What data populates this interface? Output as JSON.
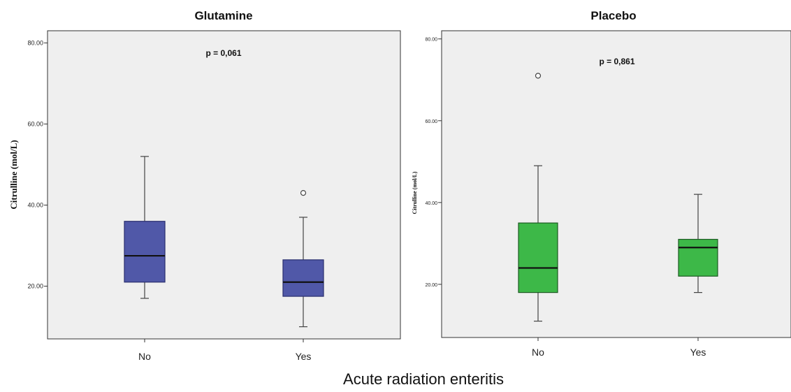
{
  "x_axis_label": "Acute radiation enteritis",
  "chart_data": [
    {
      "type": "box",
      "title": "Glutamine",
      "ylabel": "Citrulline (mol/L)",
      "ylim": [
        7,
        83
      ],
      "yticks": [
        "80.00",
        "60.00",
        "40.00",
        "20.00"
      ],
      "annotation": "p = 0,061",
      "categories": [
        "No",
        "Yes"
      ],
      "boxes": [
        {
          "category": "No",
          "whisker_low": 17,
          "q1": 21,
          "median": 27.5,
          "q3": 36,
          "whisker_high": 52,
          "outliers": []
        },
        {
          "category": "Yes",
          "whisker_low": 10,
          "q1": 17.5,
          "median": 21,
          "q3": 26.5,
          "whisker_high": 37,
          "outliers": [
            43
          ]
        }
      ],
      "box_color": "#5058a8",
      "box_edge": "#2a2f6e",
      "grid": false
    },
    {
      "type": "box",
      "title": "Placebo",
      "ylabel": "Citrulline (mol/L)",
      "ylim": [
        7,
        82
      ],
      "yticks": [
        "80.00",
        "60.00",
        "40.00",
        "20.00"
      ],
      "annotation": "p = 0,861",
      "categories": [
        "No",
        "Yes"
      ],
      "boxes": [
        {
          "category": "No",
          "whisker_low": 11,
          "q1": 18,
          "median": 24,
          "q3": 35,
          "whisker_high": 49,
          "outliers": [
            71
          ]
        },
        {
          "category": "Yes",
          "whisker_low": 18,
          "q1": 22,
          "median": 29,
          "q3": 31,
          "whisker_high": 42,
          "outliers": []
        }
      ],
      "box_color": "#3db848",
      "box_edge": "#1c5a22",
      "grid": false
    }
  ]
}
